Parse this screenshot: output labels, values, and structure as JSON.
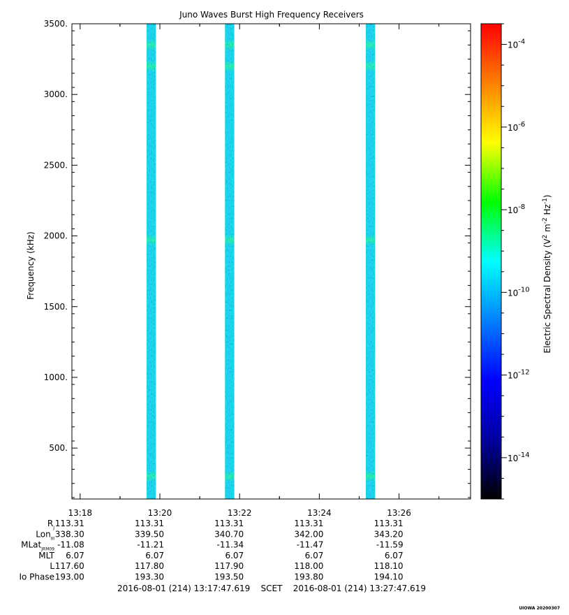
{
  "chart_data": {
    "type": "heatmap",
    "title": "Juno Waves Burst High Frequency Receivers",
    "ylabel": "Frequency (kHz)",
    "ylim": [
      140,
      3500
    ],
    "yticks": [
      {
        "value": 500,
        "label": "500."
      },
      {
        "value": 1000,
        "label": "1000."
      },
      {
        "value": 1500,
        "label": "1500."
      },
      {
        "value": 2000,
        "label": "2000."
      },
      {
        "value": 2500,
        "label": "2500."
      },
      {
        "value": 3000,
        "label": "3000."
      },
      {
        "value": 3500,
        "label": "3500."
      }
    ],
    "xlim": [
      "13:17:47.619",
      "13:27:47.619"
    ],
    "xticks": [
      {
        "value": "13:18:00",
        "label": "13:18"
      },
      {
        "value": "13:20:00",
        "label": "13:20"
      },
      {
        "value": "13:22:00",
        "label": "13:22"
      },
      {
        "value": "13:24:00",
        "label": "13:24"
      },
      {
        "value": "13:26:00",
        "label": "13:26"
      }
    ],
    "bursts": [
      {
        "start": "13:19:40",
        "end": "13:19:54"
      },
      {
        "start": "13:21:38",
        "end": "13:21:52"
      },
      {
        "start": "13:25:10",
        "end": "13:25:24"
      }
    ],
    "enhanced_bands_khz": [
      300,
      1970,
      3200,
      3350
    ],
    "colorbar": {
      "label_parts": [
        "Electric Spectral Density (V",
        "2",
        " m",
        "-2",
        " Hz",
        "-1",
        ")"
      ],
      "scale": "log",
      "range_exp": [
        -15,
        -3.5
      ],
      "ticks": [
        {
          "exp": -14,
          "base": "10",
          "sup": "-14"
        },
        {
          "exp": -12,
          "base": "10",
          "sup": "-12"
        },
        {
          "exp": -10,
          "base": "10",
          "sup": "-10"
        },
        {
          "exp": -8,
          "base": "10",
          "sup": "-8"
        },
        {
          "exp": -6,
          "base": "10",
          "sup": "-6"
        },
        {
          "exp": -4,
          "base": "10",
          "sup": "-4"
        }
      ],
      "colors": [
        "#000000",
        "#0000a0",
        "#0000ff",
        "#0080ff",
        "#00ffff",
        "#00ff00",
        "#ffff00",
        "#ff8000",
        "#ff0000"
      ]
    },
    "ephemeris": {
      "rows": [
        {
          "label": "R",
          "sub": "J",
          "values": [
            "113.31",
            "113.31",
            "113.31",
            "113.31",
            "113.31"
          ]
        },
        {
          "label": "Lon",
          "sub": "III",
          "values": [
            "338.30",
            "339.50",
            "340.70",
            "342.00",
            "343.20"
          ]
        },
        {
          "label": "MLat",
          "sub": "JRM09",
          "values": [
            "-11.08",
            "-11.21",
            "-11.34",
            "-11.47",
            "-11.59"
          ]
        },
        {
          "label": "MLT",
          "sub": "",
          "values": [
            "6.07",
            "6.07",
            "6.07",
            "6.07",
            "6.07"
          ]
        },
        {
          "label": "L",
          "sub": "",
          "values": [
            "117.60",
            "117.80",
            "117.90",
            "118.00",
            "118.10"
          ]
        },
        {
          "label": "Io Phase",
          "sub": "",
          "values": [
            "193.00",
            "193.30",
            "193.50",
            "193.80",
            "194.10"
          ]
        }
      ]
    },
    "time_range_text": "2016-08-01 (214) 13:17:47.619    SCET    2016-08-01 (214) 13:27:47.619",
    "credit": "UIOWA 20200307"
  }
}
